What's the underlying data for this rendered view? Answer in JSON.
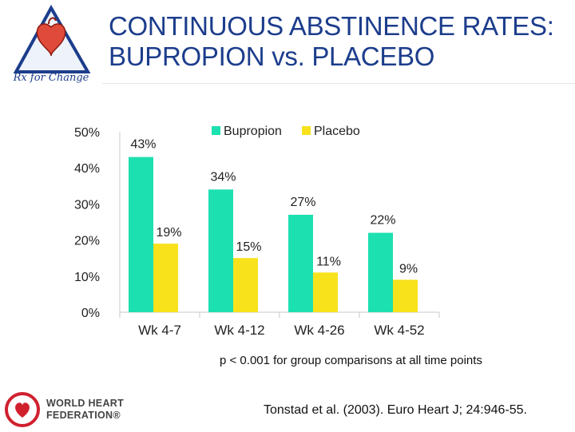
{
  "logo": {
    "text": "Rx for Change"
  },
  "title": {
    "line1": "CONTINUOUS ABSTINENCE RATES:",
    "line2": "BUPROPION vs. PLACEBO"
  },
  "colors": {
    "title": "#1c3d8c",
    "bupropion": "#1de0b0",
    "placebo": "#f7e21c",
    "whf_red": "#d0202e"
  },
  "chart_data": {
    "type": "bar",
    "categories": [
      "Wk 4-7",
      "Wk 4-12",
      "Wk 4-26",
      "Wk 4-52"
    ],
    "series": [
      {
        "name": "Bupropion",
        "values": [
          43,
          34,
          27,
          22
        ],
        "labels": [
          "43%",
          "34%",
          "27%",
          "22%"
        ]
      },
      {
        "name": "Placebo",
        "values": [
          19,
          15,
          11,
          9
        ],
        "labels": [
          "19%",
          "15%",
          "11%",
          "9%"
        ]
      }
    ],
    "yticks": [
      "0%",
      "10%",
      "20%",
      "30%",
      "40%",
      "50%"
    ],
    "ylim": [
      0,
      50
    ],
    "grid": false,
    "legend": "top"
  },
  "footnote": "p < 0.001 for group comparisons at all time points",
  "whf": {
    "line1": "WORLD HEART",
    "line2": "FEDERATION®"
  },
  "citation": "Tonstad et al. (2003). Euro Heart J; 24:946-55."
}
